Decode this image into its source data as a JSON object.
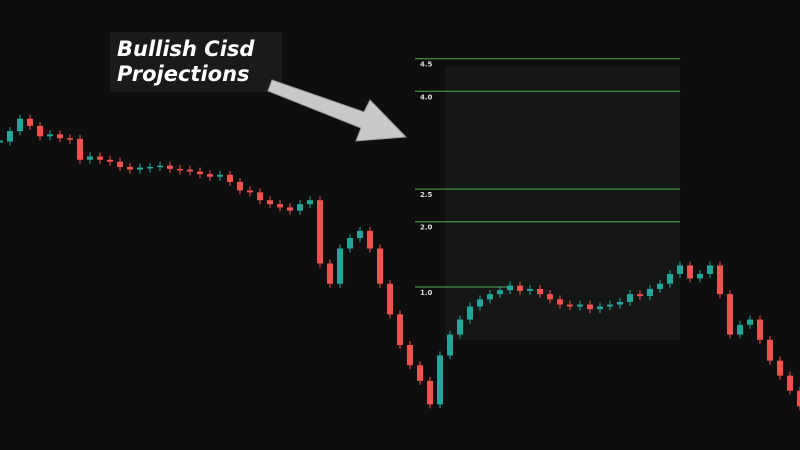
{
  "chart_data": {
    "type": "candlestick",
    "annotation": [
      "Bullish Cisd",
      "Projections"
    ],
    "up_color": "#26a69a",
    "down_color": "#ef5350",
    "level_color": "#4caf50",
    "levels": [
      {
        "value": 4.5,
        "label": "4.5"
      },
      {
        "value": 4,
        "label": "4.0"
      },
      2.5,
      {
        "value": 2,
        "label": "2.0"
      },
      {
        "value": 1,
        "label": "1.0"
      }
    ],
    "ylim": [
      -1.5,
      5.4
    ],
    "close": [
      3.23,
      3.39,
      3.58,
      3.47,
      3.31,
      3.34,
      3.28,
      3.27,
      2.95,
      3.0,
      2.95,
      2.92,
      2.84,
      2.8,
      2.83,
      2.84,
      2.86,
      2.81,
      2.8,
      2.77,
      2.73,
      2.69,
      2.72,
      2.61,
      2.48,
      2.45,
      2.33,
      2.27,
      2.22,
      2.17,
      2.27,
      2.33,
      1.36,
      1.05,
      1.59,
      1.75,
      1.86,
      1.59,
      1.05,
      0.58,
      0.11,
      -0.2,
      -0.44,
      -0.8,
      -0.05,
      0.27,
      0.5,
      0.7,
      0.81,
      0.89,
      0.95,
      1.02,
      0.94,
      0.97,
      0.89,
      0.81,
      0.73,
      0.7,
      0.73,
      0.66,
      0.7,
      0.73,
      0.77,
      0.89,
      0.86,
      0.97,
      1.05,
      1.2,
      1.33,
      1.13,
      1.2,
      1.33,
      0.89,
      0.27,
      0.42,
      0.5,
      0.19,
      -0.13,
      -0.36,
      -0.59,
      -0.83
    ]
  }
}
